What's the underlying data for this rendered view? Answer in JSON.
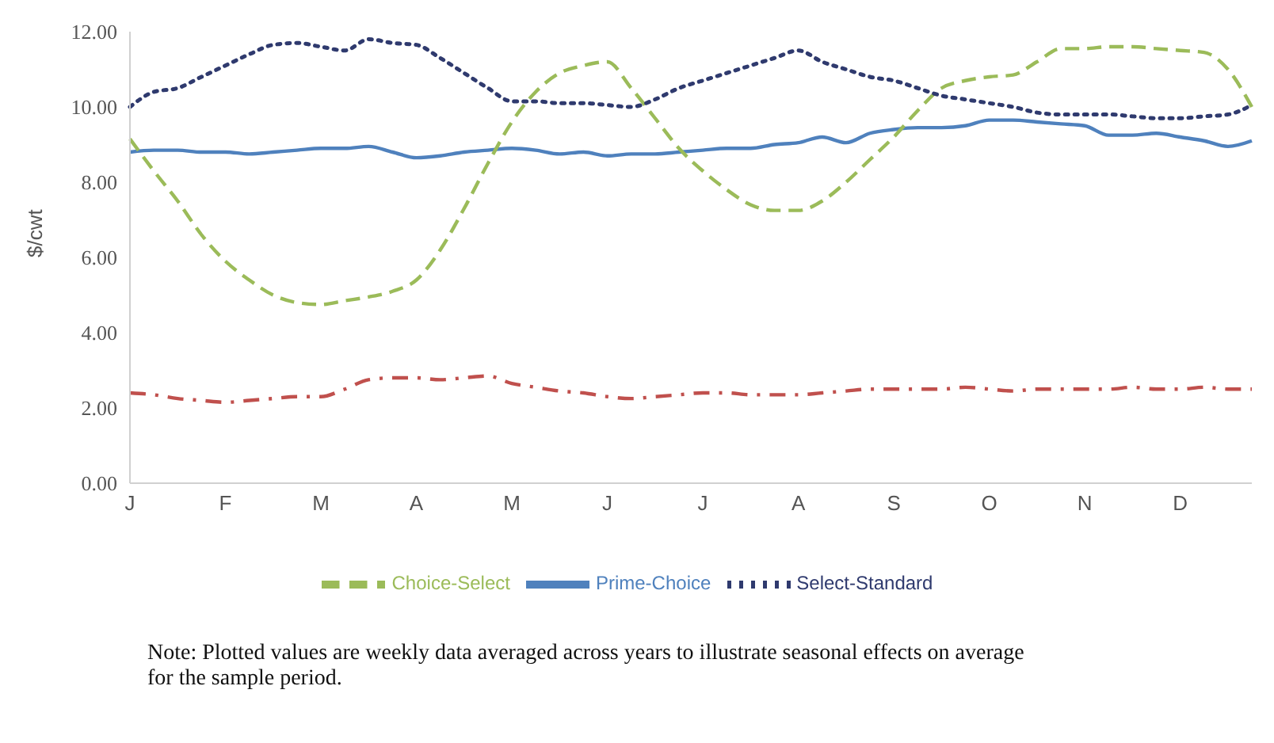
{
  "chart_data": {
    "type": "line",
    "ylabel": "$/cwt",
    "categories": [
      "J",
      null,
      null,
      null,
      "F",
      null,
      null,
      null,
      "M",
      null,
      null,
      null,
      "A",
      null,
      null,
      null,
      "M",
      null,
      null,
      null,
      "J",
      null,
      null,
      null,
      "J",
      null,
      null,
      null,
      "A",
      null,
      null,
      null,
      "S",
      null,
      null,
      null,
      "O",
      null,
      null,
      null,
      "N",
      null,
      null,
      null,
      "D",
      null,
      null,
      null
    ],
    "series": [
      {
        "name": "Prime-Choice",
        "color": "#4f81bd",
        "line_style": "solid",
        "values": [
          8.8,
          8.85,
          8.85,
          8.8,
          8.8,
          8.75,
          8.8,
          8.85,
          8.9,
          8.9,
          8.95,
          8.8,
          8.65,
          8.7,
          8.8,
          8.85,
          8.9,
          8.85,
          8.75,
          8.8,
          8.7,
          8.75,
          8.75,
          8.8,
          8.85,
          8.9,
          8.9,
          9.0,
          9.05,
          9.2,
          9.05,
          9.3,
          9.4,
          9.45,
          9.45,
          9.5,
          9.65,
          9.65,
          9.6,
          9.55,
          9.5,
          9.25,
          9.25,
          9.3,
          9.2,
          9.1,
          8.95,
          9.1
        ]
      },
      {
        "color": "#c0504d",
        "line_style": "dashdot",
        "values": [
          2.4,
          2.35,
          2.25,
          2.2,
          2.15,
          2.2,
          2.25,
          2.3,
          2.3,
          2.5,
          2.75,
          2.8,
          2.8,
          2.75,
          2.8,
          2.85,
          2.65,
          2.55,
          2.45,
          2.4,
          2.3,
          2.25,
          2.3,
          2.35,
          2.4,
          2.4,
          2.35,
          2.35,
          2.35,
          2.4,
          2.45,
          2.5,
          2.5,
          2.5,
          2.5,
          2.55,
          2.5,
          2.45,
          2.5,
          2.5,
          2.5,
          2.5,
          2.55,
          2.5,
          2.5,
          2.55,
          2.5,
          2.5
        ]
      },
      {
        "name": "Choice-Select",
        "color": "#9bbb59",
        "line_style": "dashed",
        "values": [
          9.15,
          8.3,
          7.5,
          6.6,
          5.9,
          5.4,
          5.0,
          4.8,
          4.75,
          4.85,
          4.95,
          5.1,
          5.4,
          6.2,
          7.3,
          8.5,
          9.6,
          10.4,
          10.9,
          11.1,
          11.2,
          10.5,
          9.7,
          8.9,
          8.3,
          7.8,
          7.4,
          7.25,
          7.25,
          7.5,
          8.0,
          8.6,
          9.2,
          9.9,
          10.5,
          10.7,
          10.8,
          10.85,
          11.2,
          11.55,
          11.55,
          11.6,
          11.6,
          11.55,
          11.5,
          11.45,
          11.0,
          10.0
        ]
      },
      {
        "name": "Select-Standard",
        "color": "#2f3a6e",
        "line_style": "dotted",
        "values": [
          10.0,
          10.4,
          10.5,
          10.8,
          11.1,
          11.4,
          11.65,
          11.7,
          11.6,
          11.5,
          11.8,
          11.7,
          11.65,
          11.3,
          10.9,
          10.5,
          10.15,
          10.15,
          10.1,
          10.1,
          10.05,
          10.0,
          10.2,
          10.5,
          10.7,
          10.9,
          11.1,
          11.3,
          11.5,
          11.2,
          11.0,
          10.8,
          10.7,
          10.5,
          10.3,
          10.2,
          10.1,
          10.0,
          9.85,
          9.8,
          9.8,
          9.8,
          9.75,
          9.7,
          9.7,
          9.75,
          9.8,
          10.05
        ]
      }
    ],
    "ylim": [
      0,
      12
    ],
    "yticks": [
      {
        "value": 0,
        "label": "0.00"
      },
      {
        "value": 2,
        "label": "2.00"
      },
      {
        "value": 4,
        "label": "4.00"
      },
      {
        "value": 6,
        "label": "6.00"
      },
      {
        "value": 8,
        "label": "8.00"
      },
      {
        "value": 10,
        "label": "10.00"
      },
      {
        "value": 12,
        "label": "12.00"
      }
    ],
    "legend": "bottom",
    "annotations": [
      "Note: Plotted values are weekly data averaged across years to illustrate seasonal effects on average for the sample period."
    ]
  }
}
